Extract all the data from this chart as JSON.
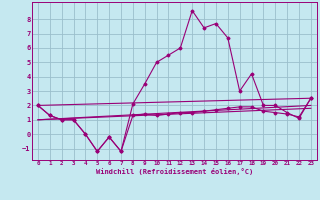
{
  "xlabel": "Windchill (Refroidissement éolien,°C)",
  "background_color": "#c5e8f0",
  "grid_color": "#9bbfcc",
  "line_color": "#990077",
  "xlim": [
    -0.5,
    23.5
  ],
  "ylim": [
    -1.8,
    9.2
  ],
  "yticks": [
    -1,
    0,
    1,
    2,
    3,
    4,
    5,
    6,
    7,
    8
  ],
  "xticks": [
    0,
    1,
    2,
    3,
    4,
    5,
    6,
    7,
    8,
    9,
    10,
    11,
    12,
    13,
    14,
    15,
    16,
    17,
    18,
    19,
    20,
    21,
    22,
    23
  ],
  "series_main_x": [
    0,
    1,
    2,
    3,
    4,
    5,
    6,
    7,
    8,
    9,
    10,
    11,
    12,
    13,
    14,
    15,
    16,
    17,
    18,
    19,
    20,
    21,
    22,
    23
  ],
  "series_main_y": [
    2.0,
    1.3,
    1.0,
    1.0,
    0.0,
    -1.2,
    -0.2,
    -1.2,
    2.1,
    3.5,
    5.0,
    5.5,
    6.0,
    8.6,
    7.4,
    7.7,
    6.7,
    3.0,
    4.2,
    2.0,
    2.0,
    1.5,
    1.1,
    2.5
  ],
  "series_flat_x": [
    0,
    1,
    2,
    3,
    4,
    5,
    6,
    7,
    8,
    9,
    10,
    11,
    12,
    13,
    14,
    15,
    16,
    17,
    18,
    19,
    20,
    21,
    22,
    23
  ],
  "series_flat_y": [
    2.0,
    1.3,
    1.0,
    1.0,
    0.0,
    -1.2,
    -0.2,
    -1.2,
    1.3,
    1.4,
    1.3,
    1.4,
    1.5,
    1.5,
    1.6,
    1.7,
    1.8,
    1.9,
    1.9,
    1.6,
    1.5,
    1.4,
    1.2,
    2.5
  ],
  "line1_x": [
    0,
    23
  ],
  "line1_y": [
    2.0,
    2.5
  ],
  "line2_x": [
    0,
    23
  ],
  "line2_y": [
    1.0,
    2.0
  ],
  "line3_x": [
    0,
    23
  ],
  "line3_y": [
    1.0,
    1.8
  ]
}
